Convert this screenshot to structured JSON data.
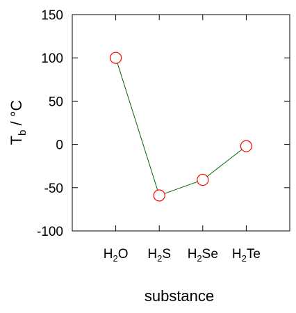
{
  "chart_data": {
    "type": "line",
    "xlabel": "substance",
    "ylabel": {
      "main": "T",
      "sub": "b",
      "unit": " / °C"
    },
    "categories": [
      {
        "pre": "H",
        "sub": "2",
        "post": "O"
      },
      {
        "pre": "H",
        "sub": "2",
        "post": "S"
      },
      {
        "pre": "H",
        "sub": "2",
        "post": "Se"
      },
      {
        "pre": "H",
        "sub": "2",
        "post": "Te"
      }
    ],
    "series": [
      {
        "values": [
          100,
          -59,
          -41,
          -2
        ]
      }
    ],
    "ylim": [
      -100,
      150
    ],
    "yticks": [
      -100,
      -50,
      0,
      50,
      100,
      150
    ],
    "xticks": [
      1,
      2,
      3,
      4
    ],
    "xlim": [
      0,
      5
    ],
    "grid": false,
    "colors": {
      "line": "#006400",
      "marker": "#ff0000",
      "axis": "#000000"
    }
  }
}
